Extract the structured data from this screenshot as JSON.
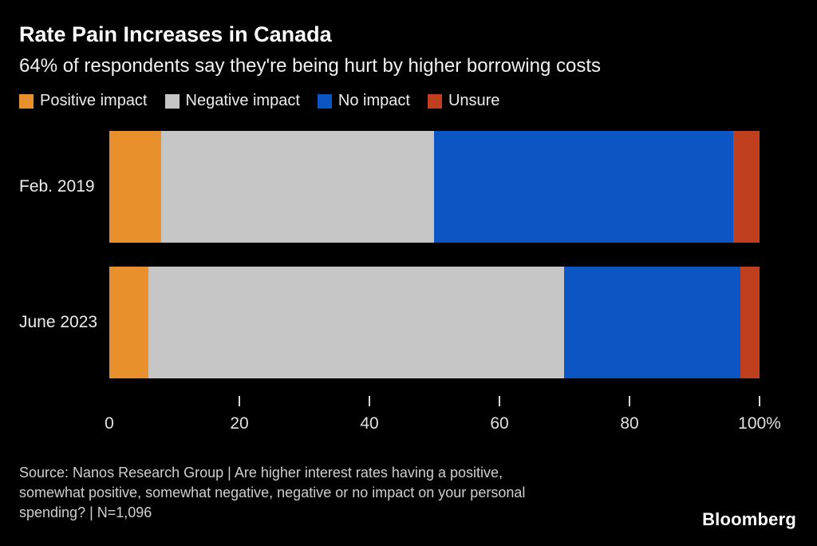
{
  "colors": {
    "background": "#000000",
    "positive_impact": "#E8912C",
    "negative_impact": "#C6C6C6",
    "no_impact": "#0C55C4",
    "unsure": "#BF3F1E"
  },
  "chart_data": {
    "type": "bar",
    "orientation": "horizontal",
    "stacked": true,
    "title": "Rate Pain Increases in Canada",
    "subtitle": "64% of respondents say they're being hurt by higher borrowing costs",
    "categories": [
      "Feb. 2019",
      "June 2023"
    ],
    "series": [
      {
        "name": "Positive impact",
        "color": "#E8912C",
        "values": [
          8,
          6
        ]
      },
      {
        "name": "Negative impact",
        "color": "#C6C6C6",
        "values": [
          42,
          64
        ]
      },
      {
        "name": "No impact",
        "color": "#0C55C4",
        "values": [
          46,
          27
        ]
      },
      {
        "name": "Unsure",
        "color": "#BF3F1E",
        "values": [
          4,
          3
        ]
      }
    ],
    "xlim": [
      0,
      100
    ],
    "xticks": [
      0,
      20,
      40,
      60,
      80,
      100
    ],
    "xtick_labels": [
      "0",
      "20",
      "40",
      "60",
      "80",
      "100%"
    ],
    "legend_position": "top",
    "grid": false
  },
  "footer": {
    "source_lines": [
      "Source: Nanos Research Group | Are higher interest rates having a positive,",
      "somewhat positive, somewhat negative, negative or no impact on your personal",
      "spending? | N=1,096"
    ],
    "brand": "Bloomberg"
  }
}
